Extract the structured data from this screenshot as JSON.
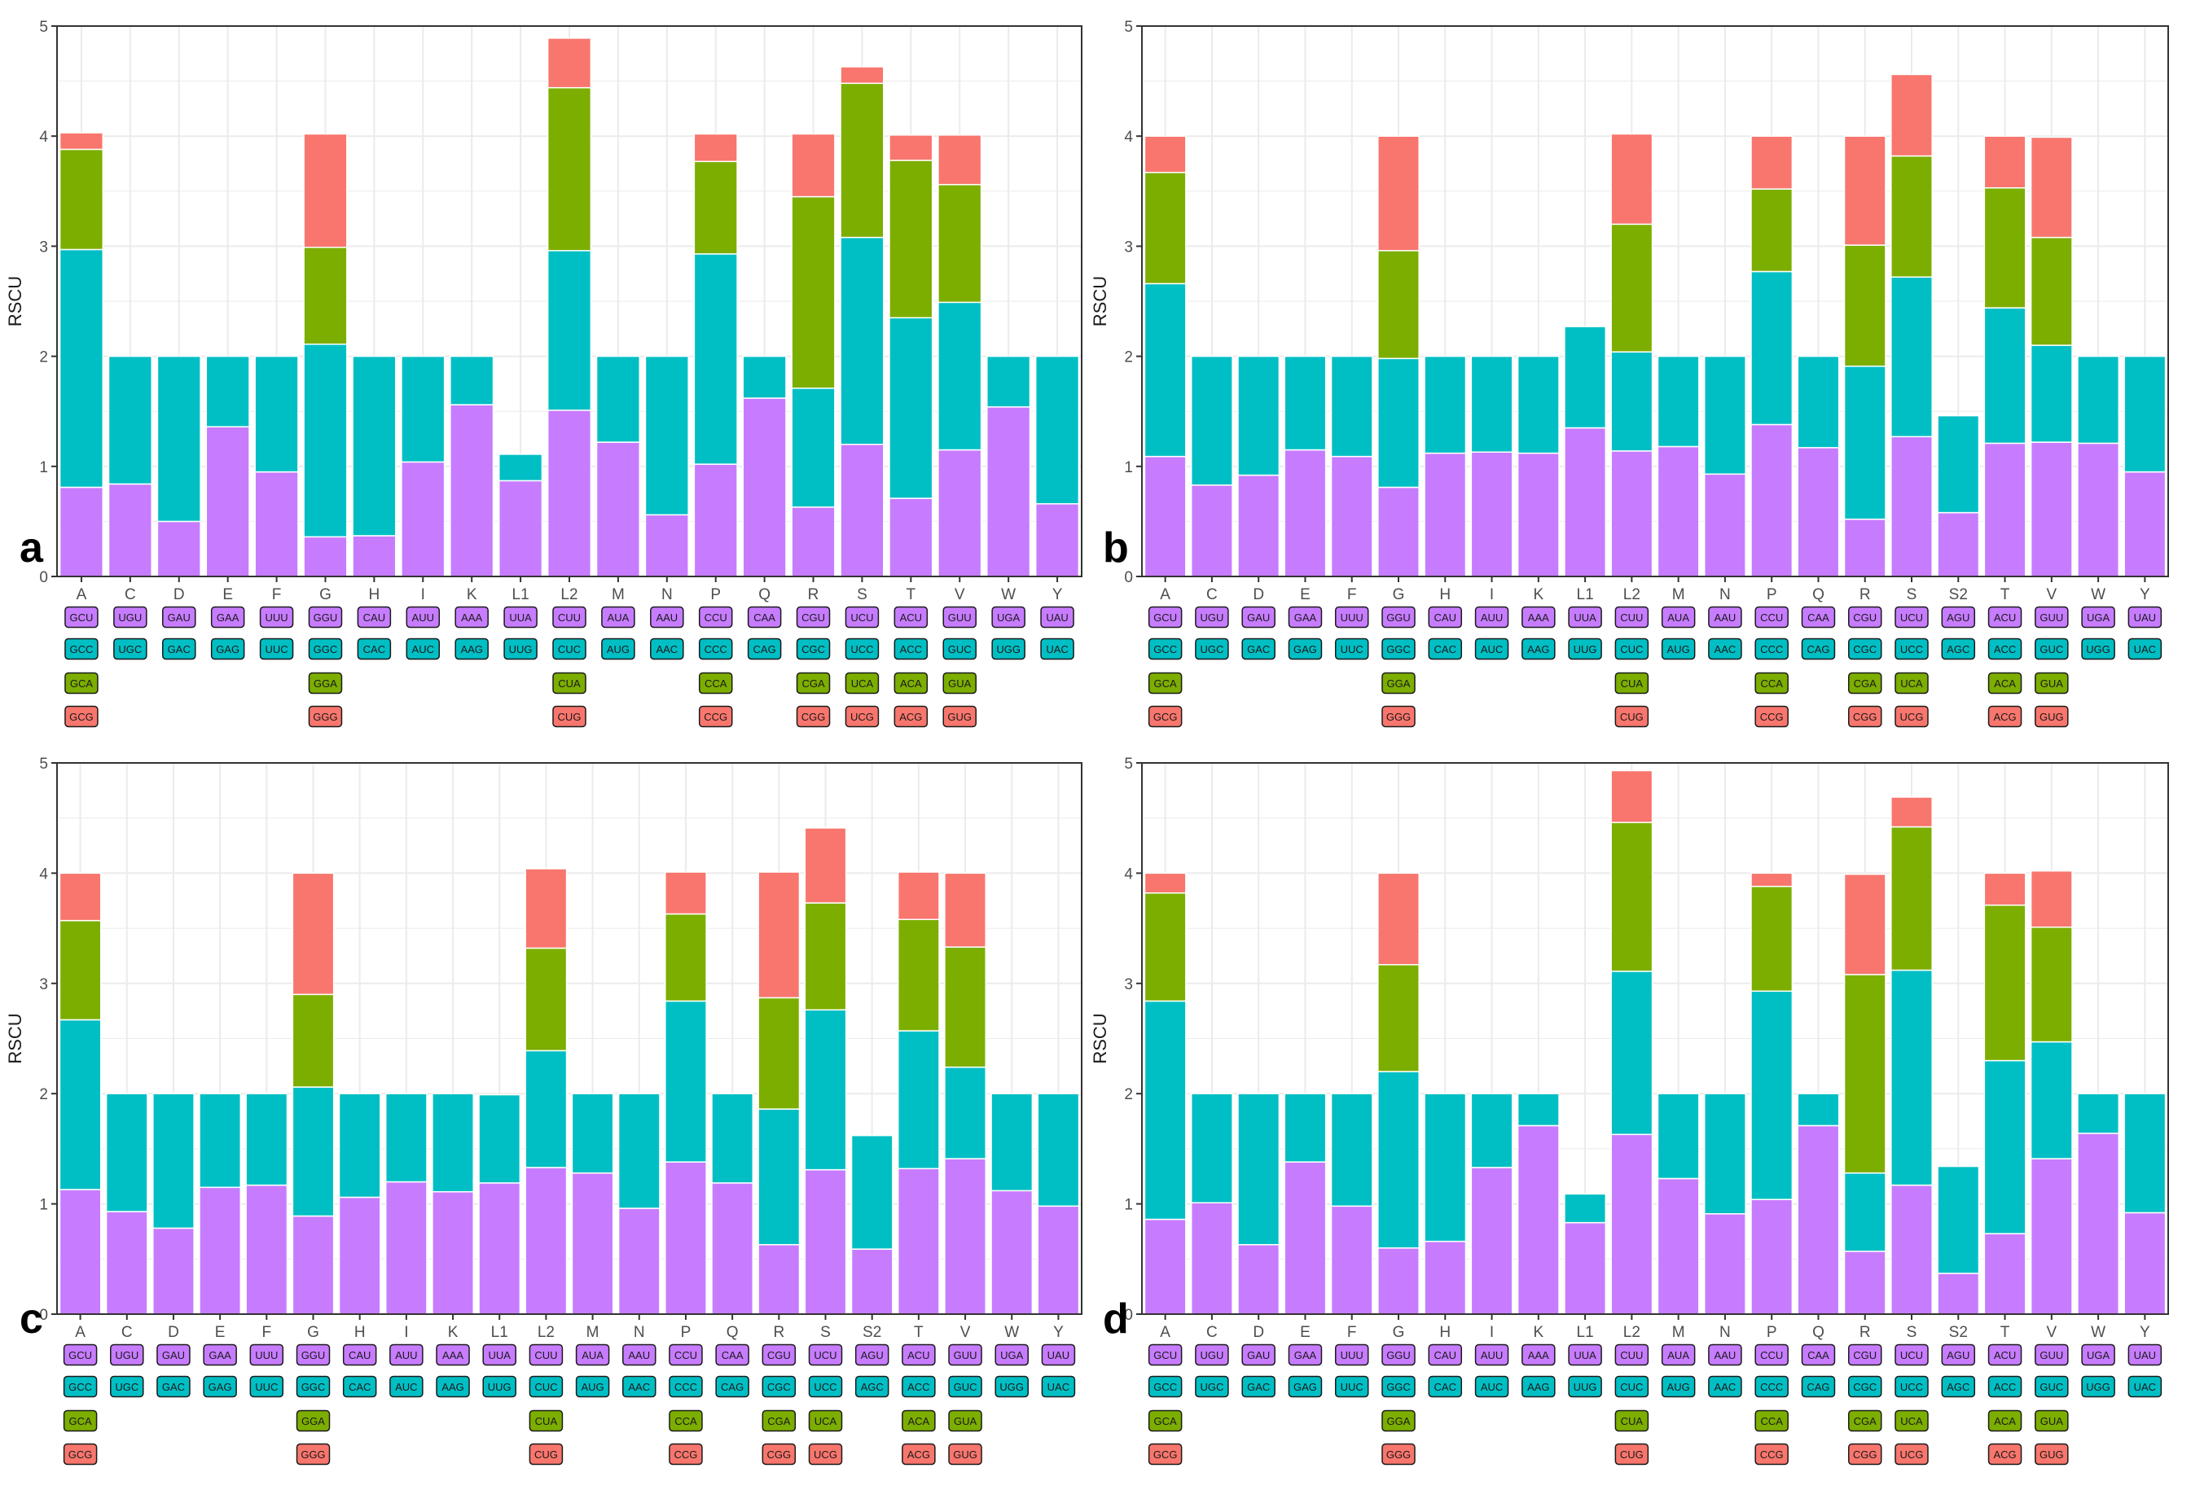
{
  "colors": {
    "codon1": "#C77CFF",
    "codon2": "#00BFC4",
    "codon3": "#7CAE00",
    "codon4": "#F8766D",
    "grid": "#EBEBEB",
    "panel_border": "#333333"
  },
  "codon_table": {
    "A": [
      "GCU",
      "GCC",
      "GCA",
      "GCG"
    ],
    "C": [
      "UGU",
      "UGC"
    ],
    "D": [
      "GAU",
      "GAC"
    ],
    "E": [
      "GAA",
      "GAG"
    ],
    "F": [
      "UUU",
      "UUC"
    ],
    "G": [
      "GGU",
      "GGC",
      "GGA",
      "GGG"
    ],
    "H": [
      "CAU",
      "CAC"
    ],
    "I": [
      "AUU",
      "AUC"
    ],
    "K": [
      "AAA",
      "AAG"
    ],
    "L1": [
      "UUA",
      "UUG"
    ],
    "L2": [
      "CUU",
      "CUC",
      "CUA",
      "CUG"
    ],
    "M": [
      "AUA",
      "AUG"
    ],
    "N": [
      "AAU",
      "AAC"
    ],
    "P": [
      "CCU",
      "CCC",
      "CCA",
      "CCG"
    ],
    "Q": [
      "CAA",
      "CAG"
    ],
    "R": [
      "CGU",
      "CGC",
      "CGA",
      "CGG"
    ],
    "S": [
      "UCU",
      "UCC",
      "UCA",
      "UCG"
    ],
    "S2": [
      "AGU",
      "AGC"
    ],
    "T": [
      "ACU",
      "ACC",
      "ACA",
      "ACG"
    ],
    "V": [
      "GUU",
      "GUC",
      "GUA",
      "GUG"
    ],
    "W": [
      "UGA",
      "UGG"
    ],
    "Y": [
      "UAU",
      "UAC"
    ]
  },
  "chart_data": [
    {
      "type": "bar",
      "stacked": true,
      "panel_label": "a",
      "ylabel": "RSCU",
      "ylim": [
        0,
        5
      ],
      "yticks": [
        "0",
        "1",
        "2",
        "3",
        "4",
        "5"
      ],
      "categories": [
        "A",
        "C",
        "D",
        "E",
        "F",
        "G",
        "H",
        "I",
        "K",
        "L1",
        "L2",
        "M",
        "N",
        "P",
        "Q",
        "R",
        "S",
        "T",
        "V",
        "W",
        "Y"
      ],
      "series": [
        {
          "name": "codon 1",
          "values": [
            0.81,
            0.84,
            0.5,
            1.36,
            0.95,
            0.36,
            0.37,
            1.04,
            1.56,
            0.87,
            1.51,
            1.22,
            0.56,
            1.02,
            1.62,
            0.63,
            1.2,
            0.71,
            1.15,
            1.54,
            0.66
          ]
        },
        {
          "name": "codon 2",
          "values": [
            2.16,
            1.16,
            1.5,
            0.64,
            1.05,
            1.75,
            1.63,
            0.96,
            0.44,
            0.24,
            1.45,
            0.78,
            1.44,
            1.91,
            0.38,
            1.08,
            1.88,
            1.64,
            1.34,
            0.46,
            1.34
          ]
        },
        {
          "name": "codon 3",
          "values": [
            0.91,
            0,
            0,
            0,
            0,
            0.88,
            0,
            0,
            0,
            0,
            1.48,
            0,
            0,
            0.84,
            0,
            1.74,
            1.4,
            1.43,
            1.07,
            0,
            0
          ]
        },
        {
          "name": "codon 4",
          "values": [
            0.15,
            0,
            0,
            0,
            0,
            1.03,
            0,
            0,
            0,
            0,
            0.45,
            0,
            0,
            0.25,
            0,
            0.57,
            0.15,
            0.23,
            0.45,
            0,
            0
          ]
        }
      ]
    },
    {
      "type": "bar",
      "stacked": true,
      "panel_label": "b",
      "ylabel": "RSCU",
      "ylim": [
        0,
        5
      ],
      "yticks": [
        "0",
        "1",
        "2",
        "3",
        "4",
        "5"
      ],
      "categories": [
        "A",
        "C",
        "D",
        "E",
        "F",
        "G",
        "H",
        "I",
        "K",
        "L1",
        "L2",
        "M",
        "N",
        "P",
        "Q",
        "R",
        "S",
        "S2",
        "T",
        "V",
        "W",
        "Y"
      ],
      "series": [
        {
          "name": "codon 1",
          "values": [
            1.09,
            0.83,
            0.92,
            1.15,
            1.09,
            0.81,
            1.12,
            1.13,
            1.12,
            1.35,
            1.14,
            1.18,
            0.93,
            1.38,
            1.17,
            0.52,
            1.27,
            0.58,
            1.21,
            1.22,
            1.21,
            0.95
          ]
        },
        {
          "name": "codon 2",
          "values": [
            1.57,
            1.17,
            1.08,
            0.85,
            0.91,
            1.17,
            0.88,
            0.87,
            0.88,
            0.92,
            0.9,
            0.82,
            1.07,
            1.39,
            0.83,
            1.39,
            1.45,
            0.88,
            1.23,
            0.88,
            0.79,
            1.05
          ]
        },
        {
          "name": "codon 3",
          "values": [
            1.01,
            0,
            0,
            0,
            0,
            0.98,
            0,
            0,
            0,
            0,
            1.16,
            0,
            0,
            0.75,
            0,
            1.1,
            1.1,
            0,
            1.09,
            0.98,
            0,
            0
          ]
        },
        {
          "name": "codon 4",
          "values": [
            0.33,
            0,
            0,
            0,
            0,
            1.04,
            0,
            0,
            0,
            0,
            0.82,
            0,
            0,
            0.48,
            0,
            0.99,
            0.74,
            0,
            0.47,
            0.91,
            0,
            0
          ]
        }
      ]
    },
    {
      "type": "bar",
      "stacked": true,
      "panel_label": "c",
      "ylabel": "RSCU",
      "ylim": [
        0,
        5
      ],
      "yticks": [
        "0",
        "1",
        "2",
        "3",
        "4",
        "5"
      ],
      "categories": [
        "A",
        "C",
        "D",
        "E",
        "F",
        "G",
        "H",
        "I",
        "K",
        "L1",
        "L2",
        "M",
        "N",
        "P",
        "Q",
        "R",
        "S",
        "S2",
        "T",
        "V",
        "W",
        "Y"
      ],
      "series": [
        {
          "name": "codon 1",
          "values": [
            1.13,
            0.93,
            0.78,
            1.15,
            1.17,
            0.89,
            1.06,
            1.2,
            1.11,
            1.19,
            1.33,
            1.28,
            0.96,
            1.38,
            1.19,
            0.63,
            1.31,
            0.59,
            1.32,
            1.41,
            1.12,
            0.98
          ]
        },
        {
          "name": "codon 2",
          "values": [
            1.54,
            1.07,
            1.22,
            0.85,
            0.83,
            1.17,
            0.94,
            0.8,
            0.89,
            0.8,
            1.06,
            0.72,
            1.04,
            1.46,
            0.81,
            1.23,
            1.45,
            1.03,
            1.25,
            0.83,
            0.88,
            1.02
          ]
        },
        {
          "name": "codon 3",
          "values": [
            0.9,
            0,
            0,
            0,
            0,
            0.84,
            0,
            0,
            0,
            0,
            0.93,
            0,
            0,
            0.79,
            0,
            1.01,
            0.97,
            0,
            1.01,
            1.09,
            0,
            0
          ]
        },
        {
          "name": "codon 4",
          "values": [
            0.43,
            0,
            0,
            0,
            0,
            1.1,
            0,
            0,
            0,
            0,
            0.72,
            0,
            0,
            0.38,
            0,
            1.14,
            0.68,
            0,
            0.43,
            0.67,
            0,
            0
          ]
        }
      ]
    },
    {
      "type": "bar",
      "stacked": true,
      "panel_label": "d",
      "ylabel": "RSCU",
      "ylim": [
        0,
        5
      ],
      "yticks": [
        "0",
        "1",
        "2",
        "3",
        "4",
        "5"
      ],
      "categories": [
        "A",
        "C",
        "D",
        "E",
        "F",
        "G",
        "H",
        "I",
        "K",
        "L1",
        "L2",
        "M",
        "N",
        "P",
        "Q",
        "R",
        "S",
        "S2",
        "T",
        "V",
        "W",
        "Y"
      ],
      "series": [
        {
          "name": "codon 1",
          "values": [
            0.86,
            1.01,
            0.63,
            1.38,
            0.98,
            0.6,
            0.66,
            1.33,
            1.71,
            0.83,
            1.63,
            1.23,
            0.91,
            1.04,
            1.71,
            0.57,
            1.17,
            0.37,
            0.73,
            1.41,
            1.64,
            0.92
          ]
        },
        {
          "name": "codon 2",
          "values": [
            1.98,
            0.99,
            1.37,
            0.62,
            1.02,
            1.6,
            1.34,
            0.67,
            0.29,
            0.26,
            1.48,
            0.77,
            1.09,
            1.89,
            0.29,
            0.71,
            1.95,
            0.97,
            1.57,
            1.06,
            0.36,
            1.08
          ]
        },
        {
          "name": "codon 3",
          "values": [
            0.98,
            0,
            0,
            0,
            0,
            0.97,
            0,
            0,
            0,
            0,
            1.35,
            0,
            0,
            0.95,
            0,
            1.8,
            1.3,
            0,
            1.41,
            1.04,
            0,
            0
          ]
        },
        {
          "name": "codon 4",
          "values": [
            0.18,
            0,
            0,
            0,
            0,
            0.83,
            0,
            0,
            0,
            0,
            0.47,
            0,
            0,
            0.12,
            0,
            0.91,
            0.27,
            0,
            0.29,
            0.51,
            0,
            0
          ]
        }
      ]
    }
  ]
}
